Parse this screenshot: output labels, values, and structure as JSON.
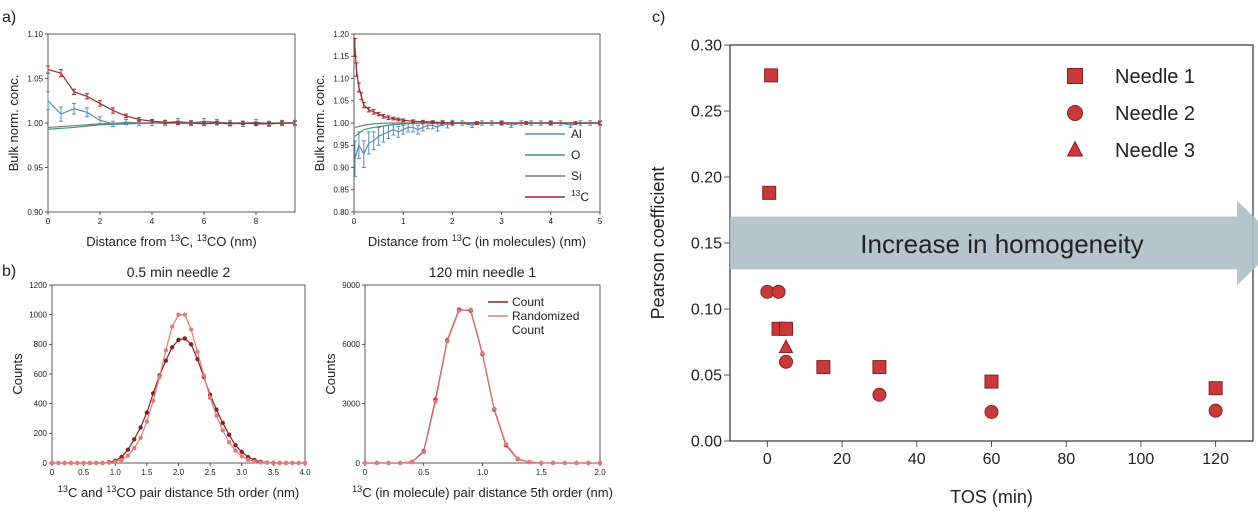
{
  "panel_labels": {
    "a": "a)",
    "b": "b)",
    "c": "c)"
  },
  "colors": {
    "al": "#5b8db8",
    "o": "#3a9a7a",
    "si": "#7a7a7a",
    "c13": "#9e2a2a",
    "count_dark": "#8b2020",
    "count_light": "#e07b7b",
    "marker": "#c83a3a",
    "marker_edge": "#8b1f1f",
    "arrow": "#aebfc6"
  },
  "chart_data": [
    {
      "id": "a1",
      "type": "line",
      "title": "",
      "xlabel_parts": [
        "Distance from ",
        "13",
        "C, ",
        "13",
        "CO (nm)"
      ],
      "ylabel": "Bulk norm. conc.",
      "xlim": [
        0,
        9.5
      ],
      "ylim": [
        0.9,
        1.1
      ],
      "xticks": [
        0,
        2,
        4,
        6,
        8
      ],
      "yticks": [
        0.9,
        0.95,
        1.0,
        1.05,
        1.1
      ],
      "ytick_labels": [
        "0.90",
        "0.95",
        "1.00",
        "1.05",
        "1.10"
      ],
      "grid": false,
      "series": [
        {
          "key": "Al",
          "color_key": "al",
          "errorbars": true,
          "x": [
            0,
            0.5,
            1.0,
            1.5,
            2.0,
            2.5,
            3.0,
            3.5,
            4.0,
            4.5,
            5.0,
            5.5,
            6.0,
            6.5,
            7.0,
            7.5,
            8.0,
            8.5,
            9.0,
            9.5
          ],
          "y": [
            1.025,
            1.01,
            1.016,
            1.012,
            1.003,
            0.999,
            1.001,
            1.0,
            1.0,
            1.0,
            1.002,
            1.0,
            1.002,
            1.001,
            1.0,
            0.999,
            1.001,
            0.999,
            1.0,
            1.0
          ],
          "err": [
            0.01,
            0.008,
            0.006,
            0.005,
            0.004,
            0.003,
            0.003,
            0.003,
            0.003,
            0.003,
            0.003,
            0.003,
            0.003,
            0.003,
            0.003,
            0.003,
            0.003,
            0.003,
            0.003,
            0.003
          ]
        },
        {
          "key": "O",
          "color_key": "o",
          "errorbars": false,
          "x": [
            0,
            1,
            2,
            3,
            4,
            5,
            6,
            7,
            8,
            9,
            9.5
          ],
          "y": [
            0.993,
            0.995,
            0.998,
            0.999,
            1.0,
            1.0,
            1.0,
            1.0,
            1.0,
            1.0,
            1.0
          ]
        },
        {
          "key": "Si",
          "color_key": "si",
          "errorbars": false,
          "x": [
            0,
            1,
            2,
            3,
            4,
            5,
            6,
            7,
            8,
            9,
            9.5
          ],
          "y": [
            0.995,
            0.997,
            0.999,
            1.0,
            1.0,
            1.0,
            1.0,
            1.0,
            1.0,
            1.0,
            1.0
          ]
        },
        {
          "key": "13C",
          "color_key": "c13",
          "errorbars": true,
          "x": [
            0,
            0.5,
            1.0,
            1.5,
            2.0,
            2.5,
            3.0,
            3.5,
            4.0,
            4.5,
            5.0,
            5.5,
            6.0,
            6.5,
            7.0,
            7.5,
            8.0,
            8.5,
            9.0,
            9.5
          ],
          "y": [
            1.06,
            1.056,
            1.035,
            1.03,
            1.022,
            1.014,
            1.008,
            1.004,
            1.002,
            1.001,
            1.0,
            1.0,
            0.999,
            1.0,
            0.999,
            1.0,
            0.999,
            0.999,
            1.0,
            1.0
          ],
          "err": [
            0.004,
            0.004,
            0.003,
            0.003,
            0.003,
            0.003,
            0.002,
            0.002,
            0.002,
            0.002,
            0.002,
            0.002,
            0.002,
            0.002,
            0.002,
            0.002,
            0.002,
            0.002,
            0.002,
            0.002
          ]
        }
      ]
    },
    {
      "id": "a2",
      "type": "line",
      "title": "",
      "xlabel_parts": [
        "Distance from ",
        "13",
        "C (in molecules) (nm)"
      ],
      "ylabel": "Bulk norm. conc.",
      "xlim": [
        0,
        5
      ],
      "ylim": [
        0.8,
        1.2
      ],
      "xticks": [
        0,
        1,
        2,
        3,
        4,
        5
      ],
      "yticks": [
        0.8,
        0.85,
        0.9,
        0.95,
        1.0,
        1.05,
        1.1,
        1.15,
        1.2
      ],
      "ytick_labels": [
        "0.80",
        "0.85",
        "0.90",
        "0.95",
        "1.00",
        "1.05",
        "1.10",
        "1.15",
        "1.20"
      ],
      "grid": false,
      "legend": [
        {
          "label": "Al",
          "color_key": "al"
        },
        {
          "label": "O",
          "color_key": "o"
        },
        {
          "label": "Si",
          "color_key": "si"
        },
        {
          "label": "13C",
          "color_key": "c13",
          "sup": "13",
          "base": "C"
        }
      ],
      "legend_position": "bottom-right",
      "series": [
        {
          "key": "Al",
          "color_key": "al",
          "errorbars": true,
          "x": [
            0.02,
            0.1,
            0.2,
            0.3,
            0.4,
            0.5,
            0.6,
            0.7,
            0.8,
            0.9,
            1.0,
            1.1,
            1.2,
            1.3,
            1.4,
            1.5,
            1.6,
            1.7,
            1.8,
            1.9,
            2.0,
            2.2,
            2.4,
            2.6,
            2.8,
            3.0,
            3.2,
            3.4,
            3.6,
            3.8,
            4.0,
            4.2,
            4.4,
            4.6,
            4.8,
            5.0
          ],
          "y": [
            0.92,
            0.95,
            0.93,
            0.955,
            0.96,
            0.97,
            0.975,
            0.98,
            0.985,
            0.98,
            0.985,
            0.99,
            0.99,
            0.985,
            0.99,
            0.995,
            0.995,
            0.99,
            1.0,
            0.995,
            1.0,
            1.0,
            0.995,
            1.0,
            1.0,
            1.0,
            0.995,
            1.0,
            1.0,
            1.0,
            1.0,
            1.0,
            0.995,
            1.0,
            1.0,
            1.0
          ],
          "err": [
            0.04,
            0.03,
            0.03,
            0.025,
            0.02,
            0.02,
            0.018,
            0.015,
            0.012,
            0.012,
            0.01,
            0.01,
            0.01,
            0.01,
            0.008,
            0.008,
            0.008,
            0.008,
            0.006,
            0.006,
            0.006,
            0.005,
            0.005,
            0.005,
            0.005,
            0.005,
            0.005,
            0.005,
            0.005,
            0.005,
            0.005,
            0.005,
            0.005,
            0.005,
            0.005,
            0.005
          ]
        },
        {
          "key": "O",
          "color_key": "o",
          "errorbars": false,
          "x": [
            0.02,
            0.2,
            0.4,
            0.7,
            1.0,
            1.5,
            2.0,
            3.0,
            4.0,
            5.0
          ],
          "y": [
            0.97,
            0.985,
            0.99,
            0.995,
            0.998,
            1.0,
            1.0,
            1.0,
            1.0,
            1.0
          ]
        },
        {
          "key": "Si",
          "color_key": "si",
          "errorbars": false,
          "x": [
            0.02,
            0.2,
            0.4,
            0.7,
            1.0,
            1.5,
            2.0,
            3.0,
            4.0,
            5.0
          ],
          "y": [
            0.99,
            0.995,
            0.998,
            1.0,
            1.0,
            1.0,
            1.0,
            1.0,
            1.0,
            1.0
          ]
        },
        {
          "key": "13C",
          "color_key": "c13",
          "errorbars": true,
          "x": [
            0.02,
            0.05,
            0.1,
            0.15,
            0.2,
            0.3,
            0.4,
            0.5,
            0.6,
            0.7,
            0.8,
            0.9,
            1.0,
            1.2,
            1.4,
            1.6,
            1.8,
            2.0,
            2.5,
            3.0,
            3.5,
            4.0,
            4.5,
            5.0
          ],
          "y": [
            1.17,
            1.12,
            1.08,
            1.06,
            1.04,
            1.03,
            1.025,
            1.02,
            1.015,
            1.012,
            1.01,
            1.008,
            1.006,
            1.004,
            1.003,
            1.002,
            1.001,
            1.0,
            1.0,
            1.0,
            1.0,
            1.0,
            1.0,
            1.0
          ],
          "err": [
            0.02,
            0.015,
            0.01,
            0.008,
            0.006,
            0.005,
            0.005,
            0.004,
            0.004,
            0.004,
            0.003,
            0.003,
            0.003,
            0.003,
            0.003,
            0.003,
            0.003,
            0.003,
            0.003,
            0.003,
            0.003,
            0.003,
            0.003,
            0.003
          ]
        }
      ]
    },
    {
      "id": "b1",
      "type": "line",
      "title": "0.5 min needle 2",
      "xlabel_parts": [
        "",
        "13",
        "C and ",
        "13",
        "CO pair distance 5th order (nm)"
      ],
      "ylabel": "Counts",
      "xlim": [
        0,
        4
      ],
      "ylim": [
        0,
        1200
      ],
      "xticks": [
        0,
        0.5,
        1.0,
        1.5,
        2.0,
        2.5,
        3.0,
        3.5,
        4.0
      ],
      "xtick_labels": [
        "0",
        "0.5",
        "1.0",
        "1.5",
        "2.0",
        "2.5",
        "3.0",
        "3.5",
        "4.0"
      ],
      "yticks": [
        0,
        200,
        400,
        600,
        800,
        1000,
        1200
      ],
      "grid": false,
      "series": [
        {
          "key": "Count",
          "color_key": "count_dark",
          "markers": true,
          "x": [
            0,
            0.1,
            0.2,
            0.3,
            0.4,
            0.5,
            0.6,
            0.7,
            0.8,
            0.9,
            1.0,
            1.1,
            1.2,
            1.3,
            1.4,
            1.5,
            1.6,
            1.7,
            1.8,
            1.9,
            2.0,
            2.1,
            2.2,
            2.3,
            2.4,
            2.5,
            2.6,
            2.7,
            2.8,
            2.9,
            3.0,
            3.1,
            3.2,
            3.3,
            3.4,
            3.5,
            3.6,
            3.7,
            3.8,
            3.9,
            4.0
          ],
          "y": [
            0,
            0,
            0,
            0,
            0,
            0,
            0,
            0,
            0,
            5,
            15,
            40,
            90,
            160,
            240,
            340,
            470,
            590,
            690,
            780,
            830,
            840,
            800,
            700,
            580,
            460,
            360,
            270,
            190,
            120,
            75,
            40,
            20,
            8,
            3,
            1,
            0,
            0,
            0,
            0,
            0
          ]
        },
        {
          "key": "Randomized Count",
          "color_key": "count_light",
          "markers": true,
          "x": [
            0,
            0.1,
            0.2,
            0.3,
            0.4,
            0.5,
            0.6,
            0.7,
            0.8,
            0.9,
            1.0,
            1.1,
            1.2,
            1.3,
            1.4,
            1.5,
            1.6,
            1.7,
            1.8,
            1.9,
            2.0,
            2.1,
            2.2,
            2.3,
            2.4,
            2.5,
            2.6,
            2.7,
            2.8,
            2.9,
            3.0,
            3.1,
            3.2,
            3.3,
            3.4,
            3.5,
            3.6,
            3.7,
            3.8,
            3.9,
            4.0
          ],
          "y": [
            0,
            0,
            0,
            0,
            0,
            0,
            0,
            0,
            0,
            2,
            8,
            20,
            50,
            100,
            170,
            280,
            420,
            580,
            760,
            920,
            1000,
            1000,
            900,
            750,
            590,
            440,
            320,
            220,
            140,
            85,
            45,
            22,
            10,
            4,
            1,
            0,
            0,
            0,
            0,
            0,
            0
          ]
        }
      ]
    },
    {
      "id": "b2",
      "type": "line",
      "title": "120 min needle 1",
      "xlabel_parts": [
        "",
        "13",
        "C (in molecule) pair distance 5th order (nm)"
      ],
      "ylabel": "Counts",
      "xlim": [
        0,
        2
      ],
      "ylim": [
        0,
        9000
      ],
      "xticks": [
        0,
        0.5,
        1.0,
        1.5,
        2.0
      ],
      "xtick_labels": [
        "0",
        "0.5",
        "1.0",
        "1.5",
        "2.0"
      ],
      "yticks": [
        0,
        3000,
        6000,
        9000
      ],
      "grid": false,
      "legend": [
        {
          "label": "Count",
          "color_key": "count_dark"
        },
        {
          "label": "Randomized",
          "color_key": "count_light"
        },
        {
          "label": "Count",
          "color_key": null
        }
      ],
      "legend_position": "top-right",
      "series": [
        {
          "key": "Count",
          "color_key": "count_dark",
          "markers": true,
          "x": [
            0,
            0.1,
            0.2,
            0.3,
            0.4,
            0.5,
            0.6,
            0.7,
            0.8,
            0.9,
            1.0,
            1.1,
            1.2,
            1.3,
            1.4,
            1.5,
            1.6,
            1.7,
            1.8,
            1.9,
            2.0
          ],
          "y": [
            0,
            0,
            0,
            0,
            50,
            600,
            3200,
            6200,
            7750,
            7700,
            5500,
            2700,
            900,
            200,
            40,
            5,
            0,
            0,
            0,
            0,
            0
          ]
        },
        {
          "key": "Randomized Count",
          "color_key": "count_light",
          "markers": true,
          "x": [
            0,
            0.1,
            0.2,
            0.3,
            0.4,
            0.5,
            0.6,
            0.7,
            0.8,
            0.9,
            1.0,
            1.1,
            1.2,
            1.3,
            1.4,
            1.5,
            1.6,
            1.7,
            1.8,
            1.9,
            2.0
          ],
          "y": [
            0,
            0,
            0,
            0,
            40,
            550,
            3100,
            6150,
            7700,
            7750,
            5550,
            2750,
            950,
            220,
            45,
            6,
            0,
            0,
            0,
            0,
            0
          ]
        }
      ]
    },
    {
      "id": "c",
      "type": "scatter",
      "title": "",
      "xlabel": "TOS (min)",
      "ylabel": "Pearson coefficient",
      "xlim": [
        -10,
        130
      ],
      "ylim": [
        0,
        0.3
      ],
      "xticks": [
        0,
        20,
        40,
        60,
        80,
        100,
        120
      ],
      "yticks": [
        0,
        0.05,
        0.1,
        0.15,
        0.2,
        0.25,
        0.3
      ],
      "ytick_labels": [
        "0.00",
        "0.05",
        "0.10",
        "0.15",
        "0.20",
        "0.25",
        "0.30"
      ],
      "grid": false,
      "annotation": "Increase in homogeneity",
      "legend_position": "top-right",
      "series": [
        {
          "name": "Needle 1",
          "marker": "square",
          "x": [
            1,
            0.5,
            3,
            5,
            15,
            30,
            60,
            120
          ],
          "y": [
            0.277,
            0.188,
            0.085,
            0.085,
            0.056,
            0.056,
            0.045,
            0.04
          ]
        },
        {
          "name": "Needle 2",
          "marker": "circle",
          "x": [
            0,
            3,
            5,
            30,
            60,
            120
          ],
          "y": [
            0.113,
            0.113,
            0.06,
            0.035,
            0.022,
            0.023
          ]
        },
        {
          "name": "Needle 3",
          "marker": "triangle",
          "x": [
            5
          ],
          "y": [
            0.071
          ]
        }
      ]
    }
  ]
}
